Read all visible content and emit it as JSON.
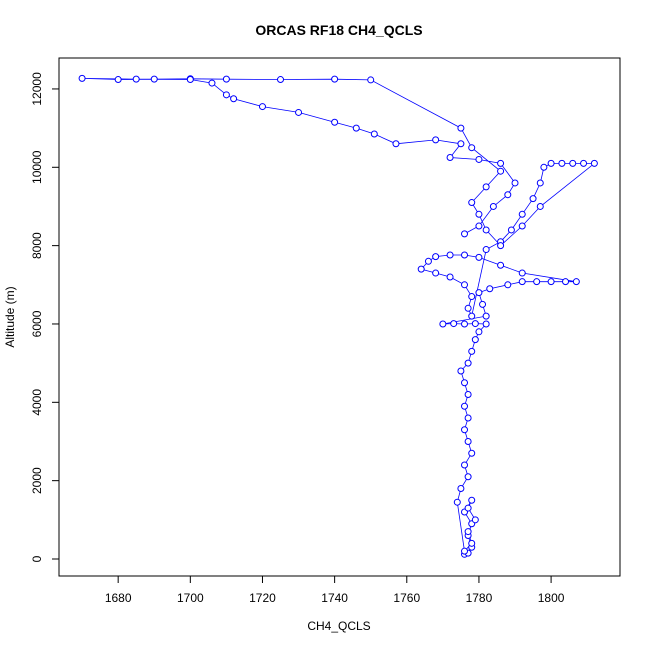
{
  "chart_data": {
    "type": "line",
    "title": "ORCAS RF18 CH4_QCLS",
    "x_label": "CH4_QCLS",
    "y_label": "Altitude (m)",
    "color": "#0000ff",
    "markers": true,
    "x": [
      1776,
      1777,
      1778,
      1777,
      1778,
      1776,
      1778,
      1777,
      1779,
      1777,
      1778,
      1776,
      1774,
      1775,
      1777,
      1776,
      1778,
      1777,
      1776,
      1777,
      1776,
      1777,
      1776,
      1775,
      1777,
      1778,
      1779,
      1780,
      1782,
      1779,
      1776,
      1773,
      1770,
      1782,
      1781,
      1780,
      1783,
      1788,
      1792,
      1796,
      1800,
      1804,
      1807,
      1792,
      1786,
      1780,
      1776,
      1772,
      1768,
      1766,
      1764,
      1768,
      1772,
      1776,
      1778,
      1777,
      1778,
      1782,
      1786,
      1789,
      1792,
      1795,
      1797,
      1798,
      1800,
      1803,
      1806,
      1809,
      1812,
      1797,
      1792,
      1786,
      1782,
      1780,
      1778,
      1782,
      1786,
      1778,
      1775,
      1750,
      1740,
      1725,
      1710,
      1700,
      1690,
      1680,
      1670,
      1685,
      1700,
      1706,
      1710,
      1712,
      1720,
      1730,
      1740,
      1746,
      1751,
      1757,
      1768,
      1775,
      1772,
      1780,
      1786,
      1790,
      1788,
      1784,
      1780,
      1776
    ],
    "values": [
      120,
      150,
      300,
      600,
      900,
      1200,
      1500,
      1300,
      1000,
      700,
      400,
      200,
      1450,
      1800,
      2100,
      2400,
      2700,
      3000,
      3300,
      3600,
      3900,
      4200,
      4500,
      4800,
      5000,
      5300,
      5600,
      5800,
      6000,
      6010,
      6000,
      6010,
      6000,
      6200,
      6500,
      6800,
      6900,
      7000,
      7080,
      7080,
      7080,
      7080,
      7080,
      7300,
      7500,
      7700,
      7760,
      7760,
      7720,
      7600,
      7400,
      7300,
      7200,
      7000,
      6700,
      6400,
      6200,
      7900,
      8100,
      8400,
      8800,
      9200,
      9600,
      10000,
      10100,
      10100,
      10100,
      10100,
      10100,
      9000,
      8500,
      8000,
      8400,
      8800,
      9100,
      9500,
      9900,
      10500,
      11000,
      12230,
      12250,
      12240,
      12250,
      12260,
      12250,
      12240,
      12270,
      12250,
      12240,
      12150,
      11850,
      11750,
      11550,
      11400,
      11150,
      11000,
      10850,
      10600,
      10700,
      10600,
      10250,
      10200,
      10100,
      9600,
      9300,
      9000,
      8500,
      8300
    ],
    "xlim": [
      1663.6,
      1819.1
    ],
    "ylim": [
      -434,
      12790
    ],
    "xticks": [
      1680,
      1700,
      1720,
      1740,
      1760,
      1780,
      1800
    ],
    "yticks": [
      0,
      2000,
      4000,
      6000,
      8000,
      10000,
      12000
    ]
  }
}
